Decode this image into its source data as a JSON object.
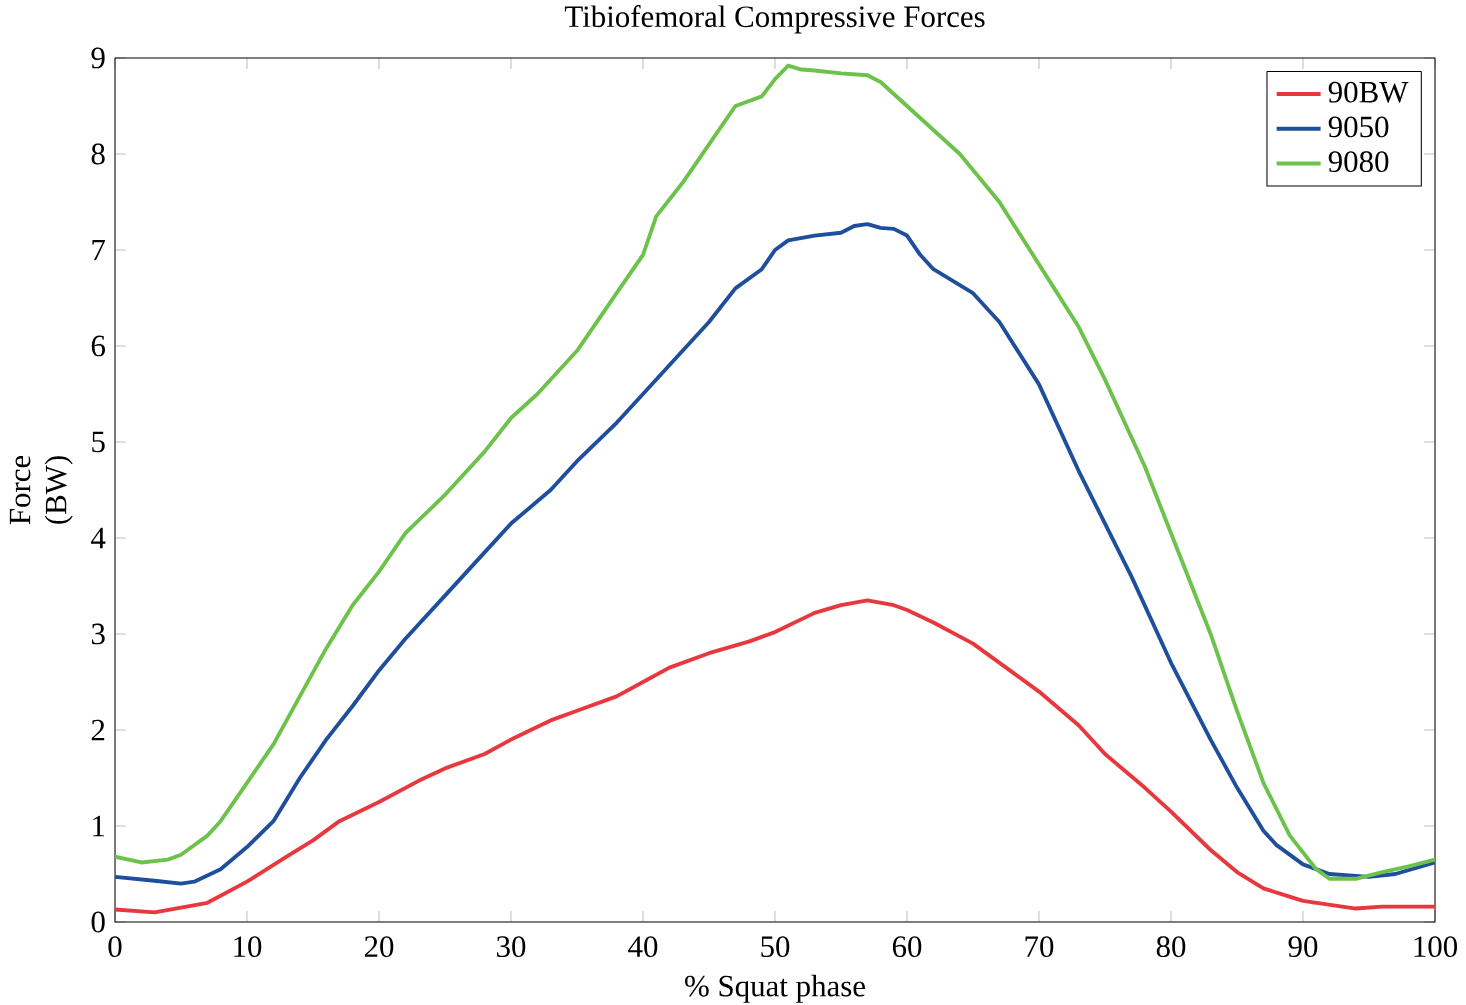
{
  "chart_data": {
    "type": "line",
    "title": "Tibiofemoral Compressive Forces",
    "xlabel": "% Squat phase",
    "ylabel": "Force (BW)",
    "xlim": [
      0,
      100
    ],
    "ylim": [
      0,
      9
    ],
    "xticks": [
      0,
      10,
      20,
      30,
      40,
      50,
      60,
      70,
      80,
      90,
      100
    ],
    "yticks": [
      0,
      1,
      2,
      3,
      4,
      5,
      6,
      7,
      8,
      9
    ],
    "grid": false,
    "legend": "top right",
    "marker": "none",
    "line_style": "solid",
    "series": [
      {
        "name": "90BW",
        "color": "#e8383d",
        "x": [
          0,
          3,
          5,
          7,
          10,
          13,
          15,
          17,
          20,
          23,
          25,
          28,
          30,
          33,
          35,
          38,
          40,
          42,
          45,
          48,
          50,
          53,
          55,
          57,
          59,
          60,
          62,
          65,
          68,
          70,
          73,
          75,
          78,
          80,
          83,
          85,
          87,
          90,
          92,
          94,
          96,
          100
        ],
        "values": [
          0.13,
          0.1,
          0.15,
          0.2,
          0.42,
          0.68,
          0.85,
          1.05,
          1.25,
          1.47,
          1.6,
          1.75,
          1.9,
          2.1,
          2.2,
          2.35,
          2.5,
          2.65,
          2.8,
          2.92,
          3.02,
          3.22,
          3.3,
          3.35,
          3.3,
          3.25,
          3.12,
          2.9,
          2.6,
          2.4,
          2.05,
          1.75,
          1.4,
          1.15,
          0.75,
          0.52,
          0.35,
          0.22,
          0.18,
          0.14,
          0.16,
          0.16
        ]
      },
      {
        "name": "9050",
        "color": "#1f4e9c",
        "x": [
          0,
          3,
          5,
          6,
          8,
          10,
          12,
          14,
          16,
          18,
          20,
          22,
          25,
          28,
          30,
          33,
          35,
          38,
          40,
          43,
          45,
          47,
          49,
          50,
          51,
          53,
          55,
          56,
          57,
          58,
          59,
          60,
          61,
          62,
          65,
          67,
          70,
          73,
          75,
          77,
          80,
          83,
          85,
          87,
          88,
          90,
          92,
          95,
          97,
          100
        ],
        "values": [
          0.47,
          0.43,
          0.4,
          0.42,
          0.55,
          0.78,
          1.05,
          1.5,
          1.9,
          2.25,
          2.62,
          2.95,
          3.4,
          3.85,
          4.15,
          4.5,
          4.8,
          5.2,
          5.5,
          5.95,
          6.25,
          6.6,
          6.8,
          7.0,
          7.1,
          7.15,
          7.18,
          7.25,
          7.27,
          7.23,
          7.22,
          7.15,
          6.95,
          6.8,
          6.55,
          6.25,
          5.6,
          4.7,
          4.15,
          3.6,
          2.7,
          1.9,
          1.4,
          0.95,
          0.8,
          0.6,
          0.5,
          0.47,
          0.5,
          0.62
        ]
      },
      {
        "name": "9080",
        "color": "#6cc24a",
        "x": [
          0,
          2,
          4,
          5,
          7,
          8,
          10,
          12,
          14,
          16,
          18,
          20,
          22,
          25,
          28,
          30,
          32,
          35,
          38,
          40,
          41,
          43,
          45,
          47,
          48,
          49,
          50,
          51,
          52,
          53,
          55,
          57,
          58,
          60,
          62,
          64,
          67,
          70,
          73,
          75,
          78,
          80,
          83,
          85,
          87,
          89,
          91,
          92,
          94,
          96,
          98,
          100
        ],
        "values": [
          0.68,
          0.62,
          0.65,
          0.7,
          0.9,
          1.05,
          1.45,
          1.85,
          2.35,
          2.85,
          3.3,
          3.65,
          4.05,
          4.45,
          4.9,
          5.25,
          5.5,
          5.95,
          6.55,
          6.95,
          7.35,
          7.7,
          8.1,
          8.5,
          8.55,
          8.6,
          8.78,
          8.92,
          8.88,
          8.87,
          8.84,
          8.82,
          8.75,
          8.5,
          8.25,
          8.0,
          7.5,
          6.85,
          6.2,
          5.65,
          4.75,
          4.05,
          3.0,
          2.2,
          1.45,
          0.9,
          0.55,
          0.45,
          0.45,
          0.52,
          0.58,
          0.65
        ]
      }
    ]
  }
}
